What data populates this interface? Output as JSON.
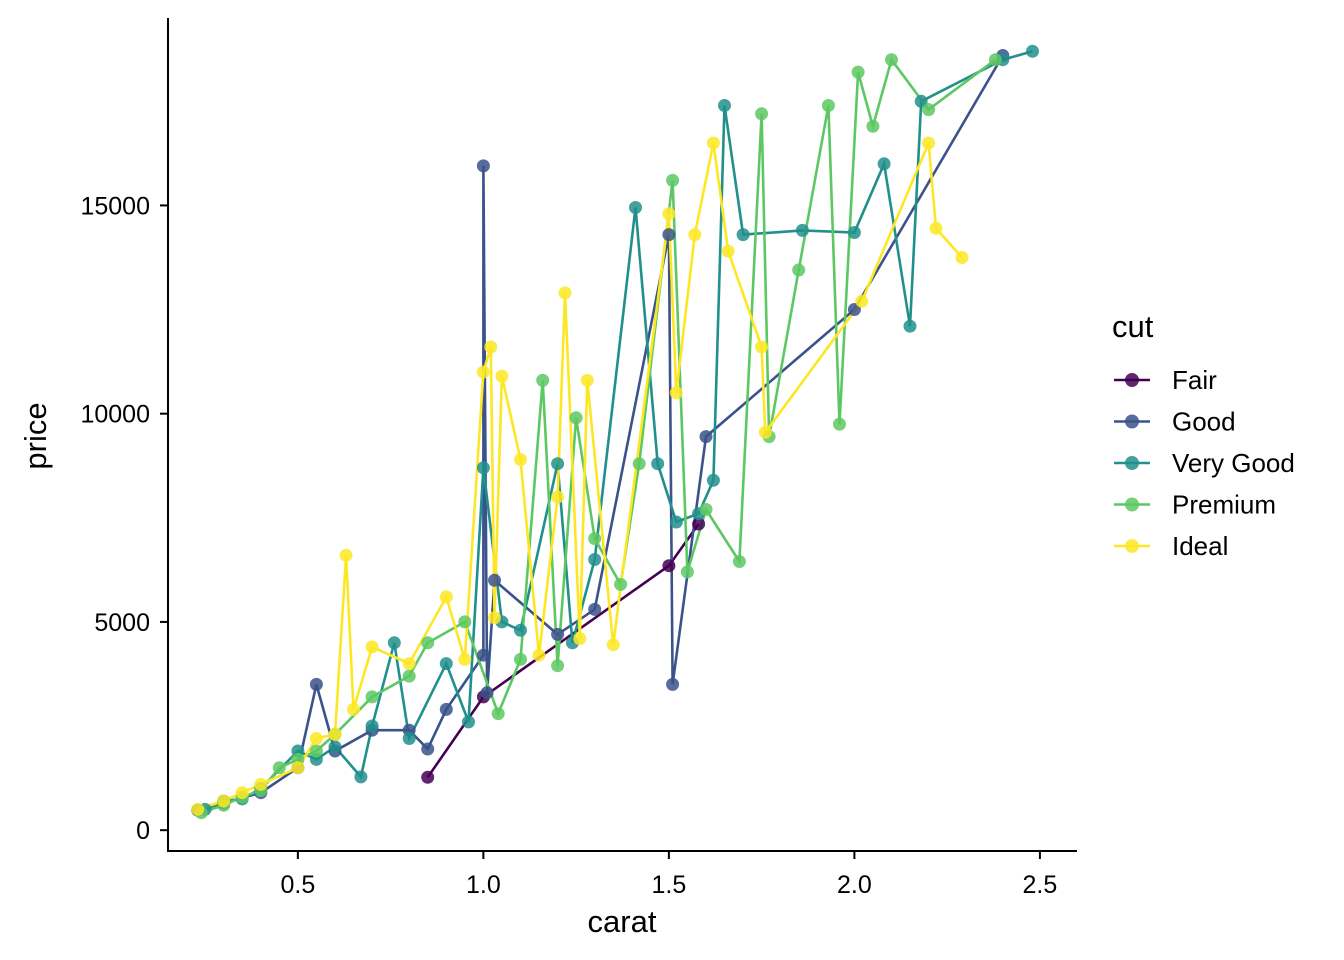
{
  "chart_data": {
    "type": "line",
    "title": "",
    "xlabel": "carat",
    "ylabel": "price",
    "xlim": [
      0.15,
      2.6
    ],
    "ylim": [
      -500,
      19500
    ],
    "x_ticks": [
      0.5,
      1.0,
      1.5,
      2.0,
      2.5
    ],
    "x_tick_labels": [
      "0.5",
      "1.0",
      "1.5",
      "2.0",
      "2.5"
    ],
    "y_ticks": [
      0,
      5000,
      10000,
      15000
    ],
    "y_tick_labels": [
      "0",
      "5000",
      "10000",
      "15000"
    ],
    "grid": false,
    "legend": {
      "title": "cut",
      "position": "right"
    },
    "series": [
      {
        "name": "Fair",
        "color": "#440154",
        "x": [
          0.85,
          1.0,
          1.5,
          1.58
        ],
        "y": [
          1270,
          3200,
          6350,
          7350
        ]
      },
      {
        "name": "Good",
        "color": "#3B528B",
        "x": [
          0.23,
          0.3,
          0.4,
          0.5,
          0.55,
          0.6,
          0.7,
          0.8,
          0.85,
          0.9,
          1.0,
          1.0,
          1.01,
          1.03,
          1.2,
          1.3,
          1.5,
          1.51,
          1.6,
          2.0,
          2.4
        ],
        "y": [
          480,
          650,
          900,
          1500,
          3500,
          1900,
          2400,
          2400,
          1950,
          2900,
          4200,
          15950,
          3300,
          6000,
          4700,
          5300,
          14300,
          3500,
          9450,
          12500,
          18600
        ]
      },
      {
        "name": "Very Good",
        "color": "#21908C",
        "x": [
          0.25,
          0.3,
          0.35,
          0.4,
          0.5,
          0.55,
          0.6,
          0.67,
          0.7,
          0.76,
          0.8,
          0.9,
          0.96,
          1.0,
          1.05,
          1.1,
          1.2,
          1.24,
          1.3,
          1.41,
          1.47,
          1.52,
          1.58,
          1.62,
          1.65,
          1.7,
          1.86,
          2.0,
          2.08,
          2.15,
          2.18,
          2.4,
          2.48
        ],
        "y": [
          500,
          700,
          750,
          1000,
          1900,
          1700,
          2000,
          1280,
          2500,
          4500,
          2200,
          4000,
          2600,
          8700,
          5000,
          4800,
          8800,
          4500,
          6500,
          14950,
          8800,
          7400,
          7600,
          8400,
          17400,
          14300,
          14400,
          14350,
          16000,
          12100,
          17500,
          18500,
          18700
        ]
      },
      {
        "name": "Premium",
        "color": "#5DC863",
        "x": [
          0.24,
          0.3,
          0.35,
          0.4,
          0.45,
          0.5,
          0.55,
          0.6,
          0.7,
          0.8,
          0.85,
          0.95,
          1.04,
          1.1,
          1.16,
          1.2,
          1.25,
          1.3,
          1.37,
          1.42,
          1.51,
          1.55,
          1.6,
          1.69,
          1.75,
          1.77,
          1.85,
          1.93,
          1.96,
          2.01,
          2.05,
          2.1,
          2.2,
          2.38
        ],
        "y": [
          420,
          600,
          800,
          950,
          1500,
          1700,
          1900,
          2300,
          3200,
          3700,
          4500,
          5000,
          2800,
          4100,
          10800,
          3950,
          9900,
          7000,
          5900,
          8800,
          15600,
          6200,
          7700,
          6450,
          17200,
          9450,
          13450,
          17400,
          9750,
          18200,
          16900,
          18500,
          17300,
          18500
        ]
      },
      {
        "name": "Ideal",
        "color": "#FDE725",
        "x": [
          0.23,
          0.3,
          0.35,
          0.4,
          0.5,
          0.55,
          0.6,
          0.63,
          0.65,
          0.7,
          0.8,
          0.9,
          0.95,
          1.0,
          1.02,
          1.03,
          1.05,
          1.1,
          1.15,
          1.2,
          1.22,
          1.26,
          1.28,
          1.35,
          1.5,
          1.52,
          1.57,
          1.62,
          1.66,
          1.75,
          1.76,
          2.02,
          2.2,
          2.22,
          2.29
        ],
        "y": [
          500,
          700,
          900,
          1100,
          1500,
          2200,
          2300,
          6600,
          2900,
          4400,
          4000,
          5600,
          4100,
          11000,
          11600,
          5100,
          10900,
          8900,
          4200,
          8000,
          12900,
          4600,
          10800,
          4450,
          14800,
          10500,
          14300,
          16500,
          13900,
          11600,
          9550,
          12700,
          16500,
          14450,
          13750
        ]
      }
    ]
  }
}
